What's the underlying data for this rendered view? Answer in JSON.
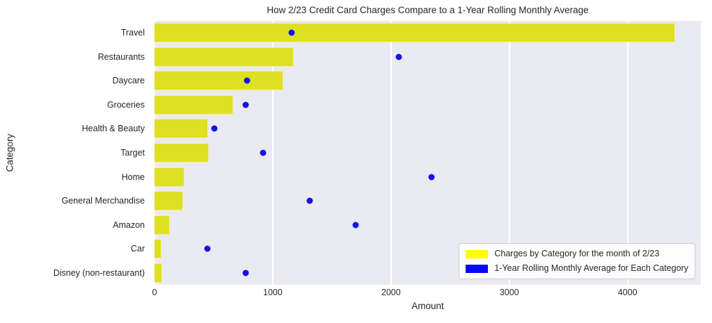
{
  "title": "How 2/23 Credit Card Charges Compare to a 1-Year Rolling Monthly Average",
  "colors": {
    "bar_fill": "#dee024",
    "legend_bar_swatch": "#ffff00",
    "dot_fill": "#1414e6",
    "legend_dot_swatch": "#0808ff",
    "plot_background": "#eaeaf2",
    "gridline": "#ffffff",
    "text": "#262626"
  },
  "legend": {
    "items": [
      {
        "label": "Charges by Category for the month of 2/23",
        "color": "#ffff00"
      },
      {
        "label": "1-Year Rolling Monthly Average for Each Category",
        "color": "#0808ff"
      }
    ]
  },
  "chart_data": {
    "type": "bar",
    "orientation": "horizontal",
    "title": "How 2/23 Credit Card Charges Compare to a 1-Year Rolling Monthly Average",
    "xlabel": "Amount",
    "ylabel": "Category",
    "xlim": [
      0,
      4620
    ],
    "xticks": [
      0,
      1000,
      2000,
      3000,
      4000
    ],
    "grid": true,
    "legend_position": "lower right",
    "categories": [
      "Travel",
      "Restaurants",
      "Daycare",
      "Groceries",
      "Health & Beauty",
      "Target",
      "Home",
      "General Merchandise",
      "Amazon",
      "Car",
      "Disney (non-restaurant)"
    ],
    "series": [
      {
        "name": "Charges by Category for the month of 2/23",
        "mark": "bar",
        "color": "#dee024",
        "values": [
          4400,
          1175,
          1090,
          665,
          455,
          460,
          255,
          240,
          130,
          60,
          65
        ]
      },
      {
        "name": "1-Year Rolling Monthly Average for Each Category",
        "mark": "scatter",
        "color": "#1414e6",
        "values": [
          1160,
          2065,
          780,
          770,
          505,
          920,
          2345,
          1310,
          1700,
          445,
          770
        ]
      }
    ]
  }
}
